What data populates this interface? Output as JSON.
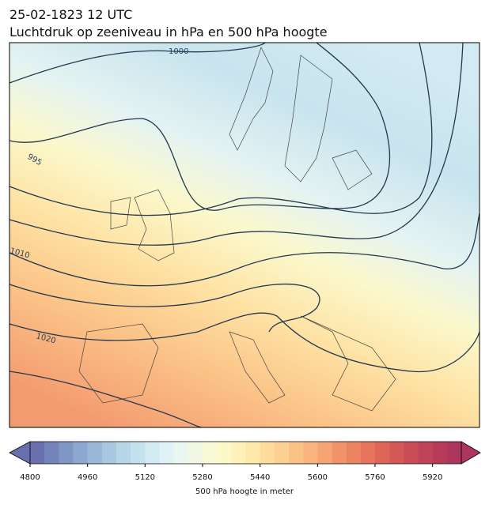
{
  "header": {
    "title": "25-02-1823 12 UTC",
    "subtitle": "Luchtdruk op zeeniveau in hPa en 500 hPa hoogte"
  },
  "map": {
    "contour_labels": [
      "1000",
      "995",
      "1010",
      "1020"
    ]
  },
  "chart_data": {
    "type": "colorbar",
    "label": "500 hPa hoogte in meter",
    "lim": [
      4800,
      6000
    ],
    "ticks": [
      4800,
      4960,
      5120,
      5280,
      5440,
      5600,
      5760,
      5920
    ],
    "colors": [
      "#6a6fae",
      "#7484ba",
      "#8096c4",
      "#8ca8ce",
      "#9ab8d8",
      "#a8c8e0",
      "#b6d6e8",
      "#c4e2ee",
      "#d2eaf2",
      "#e0f2f6",
      "#eaf6f0",
      "#f2f8e4",
      "#f8fad6",
      "#fcf8c8",
      "#fef2ba",
      "#fee8aa",
      "#fedc9c",
      "#fcd090",
      "#fbc286",
      "#f8b47c",
      "#f5a472",
      "#f1946a",
      "#ec8462",
      "#e6745c",
      "#de6558",
      "#d45856",
      "#ca4c57",
      "#c04458",
      "#b63c5a",
      "#ac365c"
    ]
  }
}
